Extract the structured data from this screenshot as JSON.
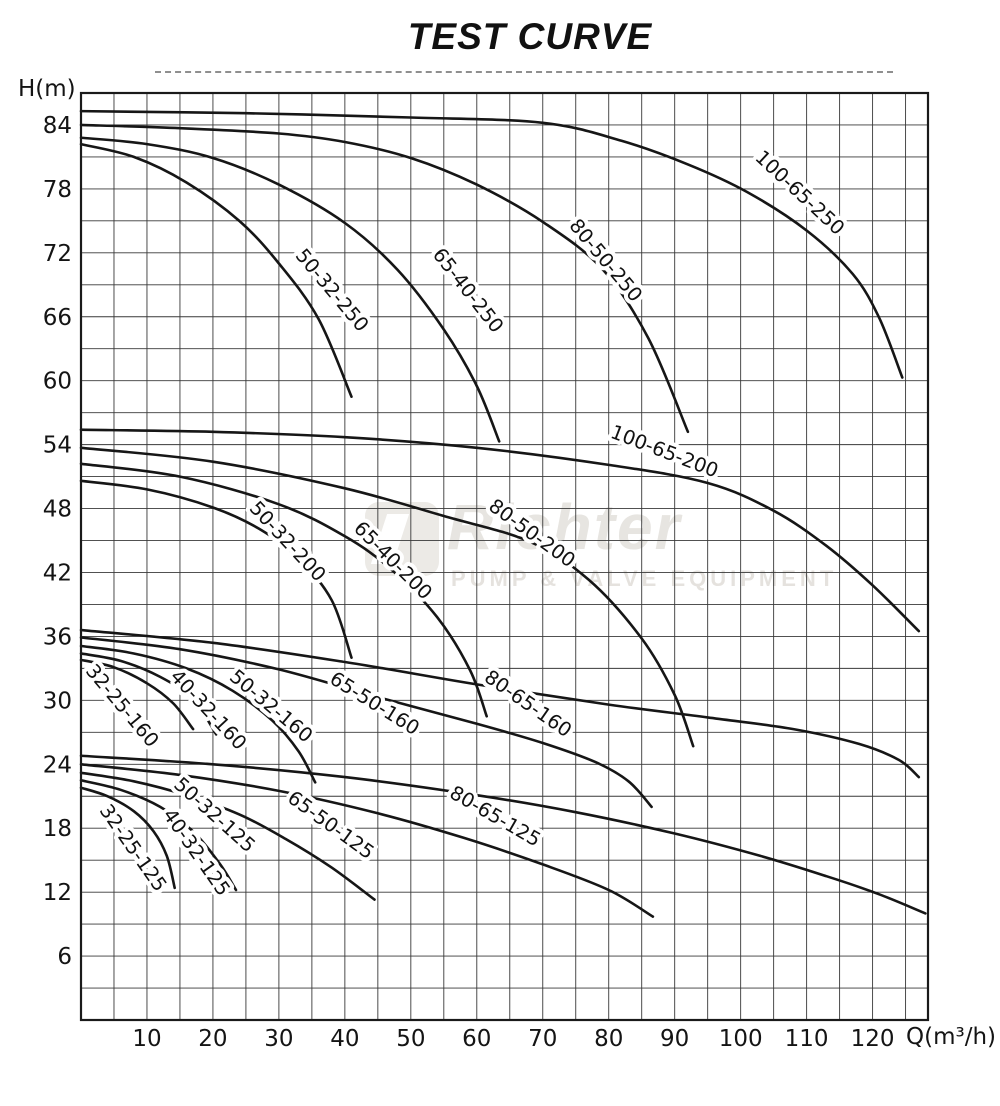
{
  "title": "TEST CURVE",
  "watermark": {
    "name": "Richter",
    "subtitle": "PUMP & VALVE EQUIPMENT"
  },
  "chart_data": {
    "type": "line",
    "title": "TEST CURVE",
    "xlabel": "Q(m³/h)",
    "ylabel": "H(m)",
    "x_ticks": [
      10,
      20,
      30,
      40,
      50,
      60,
      70,
      80,
      90,
      100,
      110,
      120
    ],
    "y_ticks": [
      84,
      78,
      72,
      66,
      60,
      54,
      48,
      42,
      36,
      30,
      24,
      18,
      12,
      6
    ],
    "x_range": [
      0,
      128.4
    ],
    "y_range": [
      0,
      87
    ],
    "grid": {
      "x_step": 5,
      "y_step": 3,
      "visible": true
    },
    "legend_position": "on-curve-labels",
    "series": [
      {
        "name": "100-65-250",
        "points": [
          [
            0,
            85.3
          ],
          [
            25,
            85.1
          ],
          [
            50,
            84.7
          ],
          [
            70,
            84.2
          ],
          [
            82,
            82.5
          ],
          [
            92,
            80.3
          ],
          [
            101,
            77.7
          ],
          [
            110,
            74.1
          ],
          [
            117,
            70
          ],
          [
            121,
            65.9
          ],
          [
            124.5,
            60.3
          ]
        ],
        "label": {
          "q": 108.3,
          "h": 77.2,
          "rot": 43
        }
      },
      {
        "name": "80-50-250",
        "points": [
          [
            0,
            84
          ],
          [
            15,
            83.7
          ],
          [
            30,
            83.2
          ],
          [
            40,
            82.4
          ],
          [
            50,
            80.9
          ],
          [
            60,
            78.4
          ],
          [
            70,
            74.9
          ],
          [
            79,
            70.5
          ],
          [
            86,
            64
          ],
          [
            92,
            55.2
          ]
        ],
        "label": {
          "q": 78.8,
          "h": 70.9,
          "rot": 50
        }
      },
      {
        "name": "65-40-250",
        "points": [
          [
            0,
            82.8
          ],
          [
            10,
            82.2
          ],
          [
            20,
            80.9
          ],
          [
            30,
            78.4
          ],
          [
            40,
            74.8
          ],
          [
            48,
            70.4
          ],
          [
            55,
            64.8
          ],
          [
            60,
            59.5
          ],
          [
            63.4,
            54.3
          ]
        ],
        "label": {
          "q": 57.9,
          "h": 68.1,
          "rot": 52
        }
      },
      {
        "name": "50-32-250",
        "points": [
          [
            0,
            82.2
          ],
          [
            8,
            81
          ],
          [
            16,
            78.6
          ],
          [
            24,
            75
          ],
          [
            30,
            71
          ],
          [
            36,
            65.8
          ],
          [
            41,
            58.5
          ]
        ],
        "label": {
          "q": 37.3,
          "h": 68.1,
          "rot": 50
        }
      },
      {
        "name": "100-65-200",
        "points": [
          [
            0,
            55.4
          ],
          [
            20,
            55.2
          ],
          [
            40,
            54.7
          ],
          [
            60,
            53.7
          ],
          [
            80,
            52.1
          ],
          [
            95,
            50.4
          ],
          [
            105,
            47.8
          ],
          [
            113,
            44.5
          ],
          [
            120,
            40.8
          ],
          [
            127,
            36.5
          ]
        ],
        "label": {
          "q": 88.1,
          "h": 52.8,
          "rot": 21
        }
      },
      {
        "name": "80-50-200",
        "points": [
          [
            0,
            53.7
          ],
          [
            20,
            52.4
          ],
          [
            40,
            49.9
          ],
          [
            55,
            47.3
          ],
          [
            68,
            44.9
          ],
          [
            77,
            41.3
          ],
          [
            85,
            35.8
          ],
          [
            90,
            30.5
          ],
          [
            92.8,
            25.7
          ]
        ],
        "label": {
          "q": 67.8,
          "h": 45.2,
          "rot": 36
        }
      },
      {
        "name": "65-40-200",
        "points": [
          [
            0,
            52.2
          ],
          [
            15,
            51
          ],
          [
            30,
            48.4
          ],
          [
            40,
            45.4
          ],
          [
            47,
            42.3
          ],
          [
            54,
            37.8
          ],
          [
            59,
            32.8
          ],
          [
            61.5,
            28.5
          ]
        ],
        "label": {
          "q": 46.6,
          "h": 42.7,
          "rot": 45
        }
      },
      {
        "name": "50-32-200",
        "points": [
          [
            0,
            50.6
          ],
          [
            10,
            49.8
          ],
          [
            20,
            48.1
          ],
          [
            27,
            46.1
          ],
          [
            33,
            43.3
          ],
          [
            38,
            39.4
          ],
          [
            41,
            34
          ]
        ],
        "label": {
          "q": 30.6,
          "h": 44.5,
          "rot": 47
        }
      },
      {
        "name": "80-65-160",
        "points": [
          [
            0,
            36.6
          ],
          [
            20,
            35.4
          ],
          [
            40,
            33.6
          ],
          [
            60,
            31.5
          ],
          [
            80,
            29.6
          ],
          [
            95,
            28.4
          ],
          [
            108,
            27.3
          ],
          [
            118,
            25.9
          ],
          [
            124,
            24.4
          ],
          [
            127,
            22.8
          ]
        ],
        "label": {
          "q": 67.2,
          "h": 29.2,
          "rot": 35
        }
      },
      {
        "name": "65-50-160",
        "points": [
          [
            0,
            35.9
          ],
          [
            15,
            34.8
          ],
          [
            30,
            32.9
          ],
          [
            45,
            30.3
          ],
          [
            60,
            27.8
          ],
          [
            70,
            26
          ],
          [
            78,
            24.2
          ],
          [
            83,
            22.4
          ],
          [
            86.5,
            20
          ]
        ],
        "label": {
          "q": 44,
          "h": 29.2,
          "rot": 32
        }
      },
      {
        "name": "50-32-160",
        "points": [
          [
            0,
            35.1
          ],
          [
            8,
            34.4
          ],
          [
            16,
            33
          ],
          [
            23,
            30.9
          ],
          [
            29,
            28.1
          ],
          [
            33,
            25.2
          ],
          [
            35.5,
            22.3
          ]
        ],
        "label": {
          "q": 28.2,
          "h": 29,
          "rot": 40
        }
      },
      {
        "name": "40-32-160",
        "points": [
          [
            0,
            34.4
          ],
          [
            6,
            33.7
          ],
          [
            12,
            32.2
          ],
          [
            17,
            30.1
          ],
          [
            20.5,
            26.8
          ]
        ],
        "label": {
          "q": 18.6,
          "h": 28.7,
          "rot": 47
        }
      },
      {
        "name": "32-25-160",
        "points": [
          [
            0,
            33.8
          ],
          [
            5,
            33.1
          ],
          [
            10,
            31.6
          ],
          [
            14,
            29.7
          ],
          [
            17,
            27.3
          ]
        ],
        "label": {
          "q": 5.5,
          "h": 29.1,
          "rot": 50
        }
      },
      {
        "name": "80-65-125",
        "points": [
          [
            0,
            24.8
          ],
          [
            20,
            24
          ],
          [
            40,
            22.8
          ],
          [
            60,
            21.1
          ],
          [
            75,
            19.5
          ],
          [
            90,
            17.5
          ],
          [
            103,
            15.4
          ],
          [
            113,
            13.5
          ],
          [
            121,
            11.8
          ],
          [
            128,
            10
          ]
        ],
        "label": {
          "q": 62.3,
          "h": 18.6,
          "rot": 30
        }
      },
      {
        "name": "65-50-125",
        "points": [
          [
            0,
            24
          ],
          [
            15,
            23
          ],
          [
            30,
            21.5
          ],
          [
            45,
            19.4
          ],
          [
            58,
            17.1
          ],
          [
            70,
            14.6
          ],
          [
            80,
            12.2
          ],
          [
            86.7,
            9.7
          ]
        ],
        "label": {
          "q": 37.3,
          "h": 17.8,
          "rot": 36
        }
      },
      {
        "name": "50-32-125",
        "points": [
          [
            0,
            23.2
          ],
          [
            8,
            22.4
          ],
          [
            16,
            21.1
          ],
          [
            24,
            19.3
          ],
          [
            31,
            17
          ],
          [
            38,
            14.3
          ],
          [
            44.5,
            11.3
          ]
        ],
        "label": {
          "q": 19.6,
          "h": 18.8,
          "rot": 42
        }
      },
      {
        "name": "40-32-125",
        "points": [
          [
            0,
            22.5
          ],
          [
            6,
            21.6
          ],
          [
            12,
            20
          ],
          [
            17,
            17.7
          ],
          [
            21,
            14.7
          ],
          [
            23.5,
            12.2
          ]
        ],
        "label": {
          "q": 16.7,
          "h": 15.4,
          "rot": 55
        }
      },
      {
        "name": "32-25-125",
        "points": [
          [
            0,
            21.8
          ],
          [
            4,
            21
          ],
          [
            8,
            19.6
          ],
          [
            11,
            17.7
          ],
          [
            13,
            15.4
          ],
          [
            14.2,
            12.4
          ]
        ],
        "label": {
          "q": 7.1,
          "h": 15.8,
          "rot": 55
        }
      }
    ]
  }
}
